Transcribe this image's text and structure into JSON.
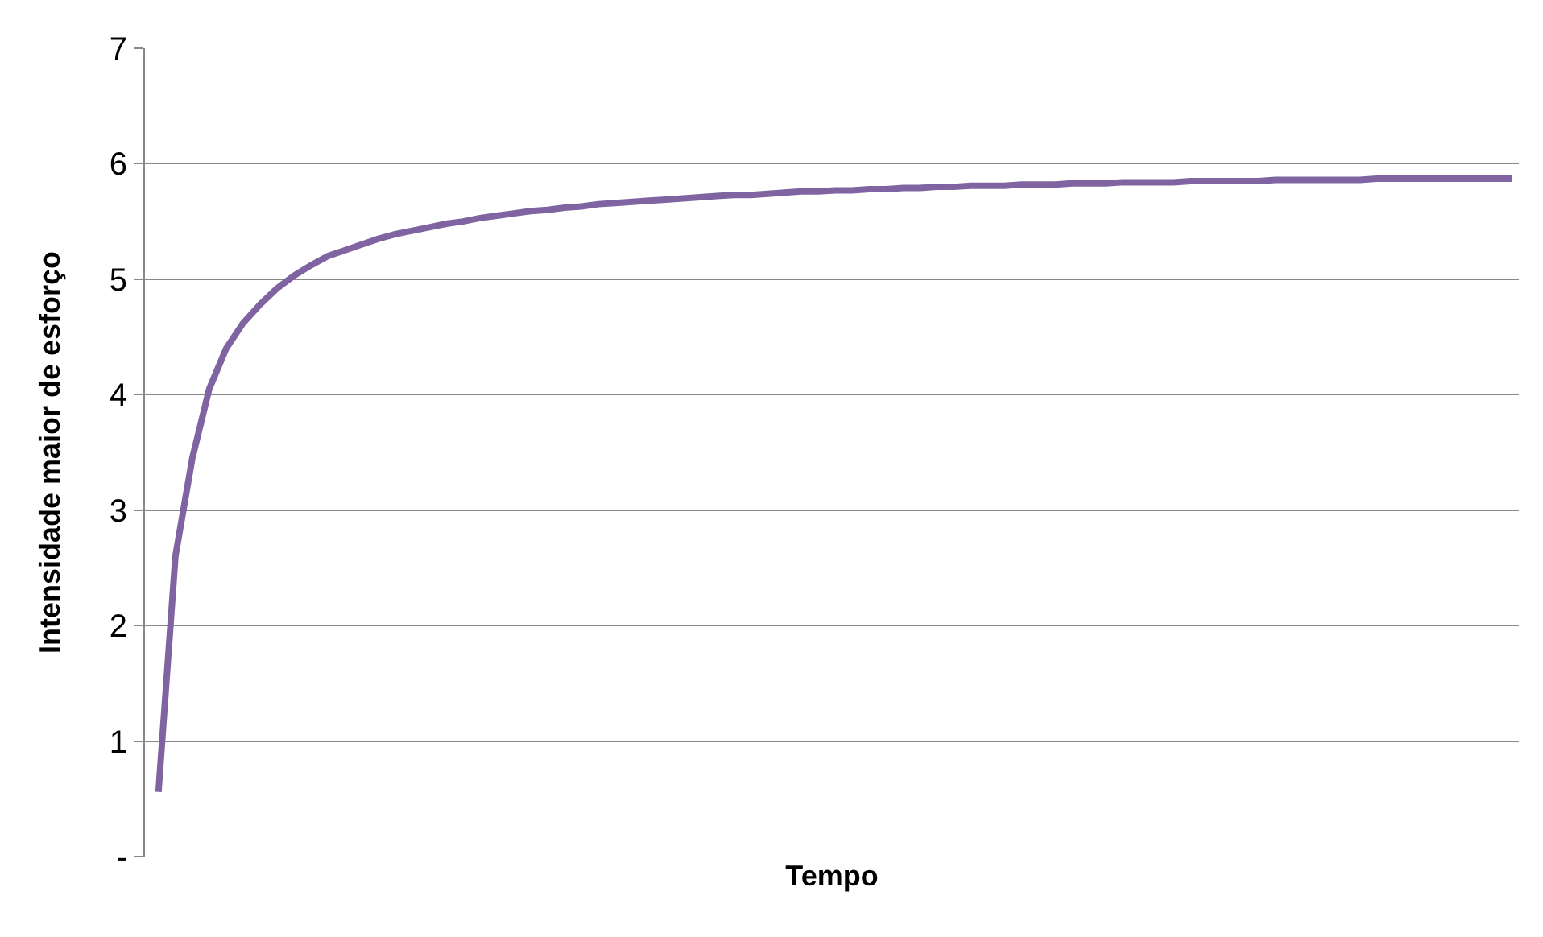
{
  "chart_data": {
    "type": "line",
    "xlabel": "Tempo",
    "ylabel": "Intensidade maior de esforço",
    "categories": [
      null,
      null,
      null,
      null,
      null,
      null,
      null,
      null,
      null,
      null,
      null,
      null,
      null,
      null,
      null,
      null,
      null,
      null,
      null,
      null,
      null,
      null,
      null,
      null,
      null,
      null,
      null,
      null,
      null,
      null,
      null,
      null,
      null,
      null,
      null,
      null,
      null,
      null,
      null,
      null,
      null,
      null,
      null,
      null,
      null,
      null,
      null,
      null,
      null,
      null,
      null,
      null,
      null,
      null,
      null,
      null,
      null,
      null,
      null,
      null,
      null,
      null,
      null,
      null,
      null,
      null,
      null,
      null,
      null,
      null,
      null,
      null,
      null,
      null,
      null,
      null,
      null,
      null,
      null,
      null,
      null
    ],
    "series": [
      {
        "color": "#8064a2",
        "values": [
          0.56,
          2.6,
          3.45,
          4.05,
          4.4,
          4.62,
          4.78,
          4.92,
          5.03,
          5.12,
          5.2,
          5.25,
          5.3,
          5.35,
          5.39,
          5.42,
          5.45,
          5.48,
          5.5,
          5.53,
          5.55,
          5.57,
          5.59,
          5.6,
          5.62,
          5.63,
          5.65,
          5.66,
          5.67,
          5.68,
          5.69,
          5.7,
          5.71,
          5.72,
          5.73,
          5.73,
          5.74,
          5.75,
          5.76,
          5.76,
          5.77,
          5.77,
          5.78,
          5.78,
          5.79,
          5.79,
          5.8,
          5.8,
          5.81,
          5.81,
          5.81,
          5.82,
          5.82,
          5.82,
          5.83,
          5.83,
          5.83,
          5.84,
          5.84,
          5.84,
          5.84,
          5.85,
          5.85,
          5.85,
          5.85,
          5.85,
          5.86,
          5.86,
          5.86,
          5.86,
          5.86,
          5.86,
          5.87,
          5.87,
          5.87,
          5.87,
          5.87,
          5.87,
          5.87,
          5.87,
          5.87
        ]
      }
    ],
    "ylim": [
      0,
      7
    ],
    "yticks": [
      {
        "value": 0,
        "label": "-"
      },
      1,
      2,
      3,
      4,
      5,
      6,
      7
    ],
    "grid": "y",
    "tick_labels": "y",
    "legend": false,
    "marker": "none",
    "line_style": "solid"
  }
}
